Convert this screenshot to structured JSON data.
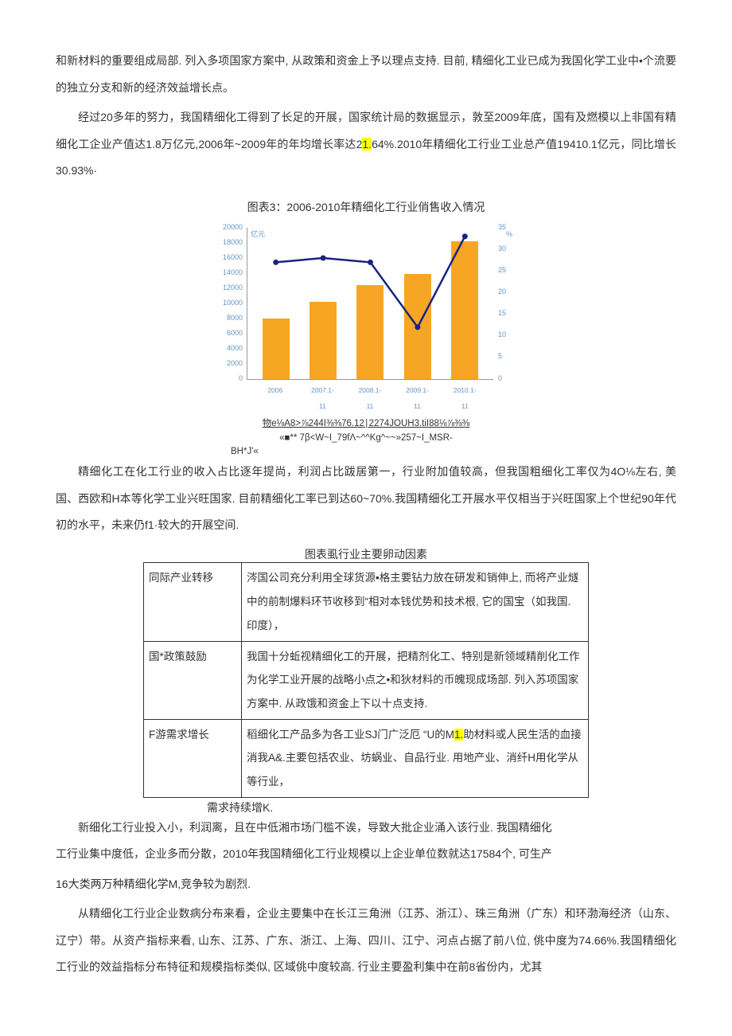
{
  "para1": "和新材料的重要组成局部. 列入多项国家方案中, 从政策和资金上予以理点支持. 目前, 精细化工业已成为我国化学工业中•个流要的独立分支和新的经济效益增长点。",
  "para2_a": "经过20多年的努力，我国精细化工得到了长足的开展，国家统计局的数据显示，敦至2009年底，国有及燃模以上非国有精细化工企业产值达1.8万亿元,2006年~2009年的年均增长率达2",
  "para2_hl": "1.",
  "para2_b": "64%.2010年精细化工行业工业总产值19410.1亿元，同比增长30.93%·",
  "chart": {
    "title": "图表3：2006-2010年精细化工行业俏售收入情况",
    "unit_left": "亿元",
    "unit_right": "%",
    "y_left_max": 20000,
    "y_left_ticks": [
      "20000",
      "18000",
      "16000",
      "14000",
      "12000",
      "10000",
      "8000",
      "6000",
      "4000",
      "2000",
      "0"
    ],
    "y_right_max": 35,
    "y_right_ticks": [
      "35",
      "30",
      "25",
      "20",
      "15",
      "10",
      "5",
      "0"
    ],
    "categories": [
      "2006",
      "2007.1-11",
      "2008.1-11",
      "2009.1-11",
      "2010.1-11"
    ],
    "bar_values": [
      8000,
      10200,
      12400,
      13800,
      18200
    ],
    "line_values": [
      27,
      28,
      27,
      12,
      33
    ],
    "bar_color": "#f7a623",
    "line_color": "#1a237e",
    "axis_text_color": "#6495c8"
  },
  "garble1": "物e⅛A8>⅞244I⅜⅜76.12∣2274JOUH3.tiI88⅛⅞⅜⅜",
  "garble2": "«■**        7β<W~I_79fΛ~^^Kg^~~»257~I_MSR-",
  "garble3": "BH*J'«",
  "para3": "精细化工在化工行业的收入占比逐年提尚，利润占比跋居第一，行业附加值较高，但我国粗细化工率仅为4O⅛左右, 美国、西欧和H本等化学工业兴旺国家. 目前精细化工率已到达60~70%.我国精细化工开展水平仅相当于兴旺国家上个世纪90年代初的水平，未来仍f1·较大的开展空间.",
  "table_title": "图表虱行业主要卵动因素",
  "table": {
    "rows": [
      {
        "label": "同际产业转移",
        "body": "涔国公司充分利用全球货源•格主要钻力放在研发和销伸上, 而将产业燧中的前制爆料环节收移到“相对本钱优势和技术根, 它的国宝（如我国. 印度），"
      },
      {
        "label": "国*政策鼓励",
        "body": "我国十分蚯视精细化工的开展，把精剂化工、特别是新领域精削化工作为化学工业开展的战略小点之•和狄材料的币魄现成场部. 列入苏项国家方案中. 从政饿和资金上下以十点支持."
      },
      {
        "label": "F游需求增长",
        "body_a": "稻细化工产品多为各工业SJ门广泛厄 “U的M",
        "body_hl": "1.",
        "body_b": "助材料或人民生活的血接消我A&.主要包括农业、坊蜗业、自品行业. 用地产业、消纤H用化学从等行业，"
      }
    ]
  },
  "after_table": "需求持续增K.",
  "para4": "新细化工行业投入小，利润离，且在中低湘市场门槛不诶，导致大批企业涌入该行业. 我国精细化",
  "para5": "工行业集中度低，企业多而分散，2010年我国精细化工行业规模以上企业单位数就达17584个, 可生产",
  "para6": "16大类两万种精细化学M,竞争较为剧烈.",
  "para7": "从精细化工行业企业数病分布来看，企业主要集中在长江三角洲（江苏、浙江）、珠三角洲（广东）和环渤海经济（山东、辽宁）带。从资产指标来看, 山东、江苏、广东、浙江、上海、四川、江宁、河点占据了前八位, 佻中度为74.66%.我国精细化工行业的效益指标分布特征和规模指标类似, 区域佻中度较高. 行业主要盈利集中在前8省份内，尤其"
}
